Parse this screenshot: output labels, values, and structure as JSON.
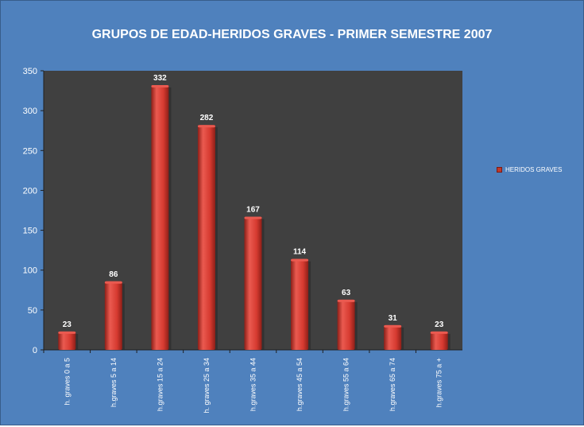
{
  "chart_data": {
    "type": "bar",
    "title": "GRUPOS DE EDAD-HERIDOS GRAVES - PRIMER SEMESTRE 2007",
    "categories": [
      "h. graves 0 a 5",
      "h.graves 5 a 14",
      "h.graves 15 a 24",
      "h. graves 25 a 34",
      "h.graves 35 a 44",
      "h.graves 45 a 54",
      "h.graves 55 a 64",
      "h.graves 65 a 74",
      "h.graves 75 a +"
    ],
    "series": [
      {
        "name": "HERIDOS GRAVES",
        "values": [
          23,
          86,
          332,
          282,
          167,
          114,
          63,
          31,
          23
        ]
      }
    ],
    "ylim": [
      0,
      350
    ],
    "yticks": [
      0,
      50,
      100,
      150,
      200,
      250,
      300,
      350
    ],
    "xlabel": "",
    "ylabel": "",
    "grid": false,
    "legend_position": "right",
    "colors": {
      "background": "#4f81bd",
      "plot_area": "#404040",
      "bar": "#d63a30",
      "bar_highlight": "#ea5a50",
      "bar_shadow": "#8e1f18",
      "text": "#ffffff"
    }
  }
}
